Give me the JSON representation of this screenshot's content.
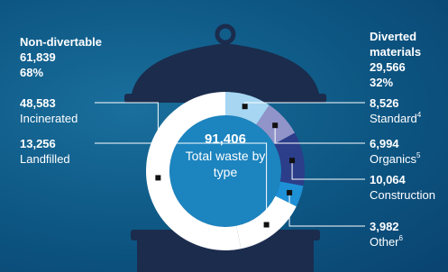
{
  "chart_data": {
    "type": "donut",
    "center": {
      "value": 91406,
      "label": "91,406",
      "caption": "Total waste by type"
    },
    "groups": [
      {
        "name": "Non-divertable",
        "value": 61839,
        "value_label": "61,839",
        "share": 68,
        "share_label": "68%",
        "series": [
          {
            "name": "Incinerated",
            "value": 48583,
            "value_label": "48,583",
            "color": "#ffffff"
          },
          {
            "name": "Landfilled",
            "value": 13256,
            "value_label": "13,256",
            "color": "#ffffff"
          }
        ]
      },
      {
        "name": "Diverted materials",
        "value": 29566,
        "value_label": "29,566",
        "share": 32,
        "share_label": "32%",
        "series": [
          {
            "name": "Standard",
            "note": "4",
            "value": 8526,
            "value_label": "8,526",
            "color": "#a6d6f2"
          },
          {
            "name": "Organics",
            "note": "5",
            "value": 6994,
            "value_label": "6,994",
            "color": "#9194c9"
          },
          {
            "name": "Construction",
            "value": 10064,
            "value_label": "10,064",
            "color": "#2c3d8a"
          },
          {
            "name": "Other",
            "note": "6",
            "value": 3982,
            "value_label": "3,982",
            "color": "#1e90d6"
          }
        ]
      }
    ]
  }
}
